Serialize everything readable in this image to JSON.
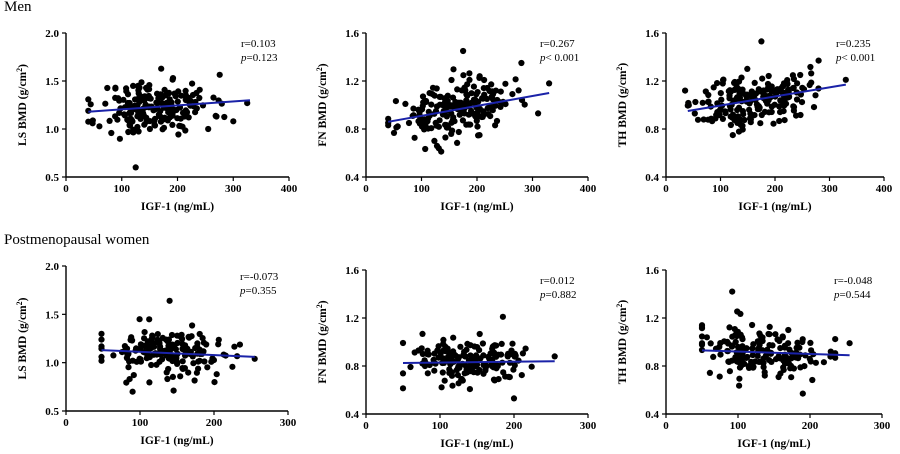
{
  "sections": [
    {
      "title": "Men",
      "panels": [
        {
          "ylabel_prefix": "LS BMD (g/cm",
          "ylabel_sup": "2",
          "ylabel_suffix": ")",
          "xlabel": "IGF-1 (ng/mL)",
          "xlim": [
            0,
            400
          ],
          "xticks": [
            0,
            100,
            200,
            300,
            400
          ],
          "ylim": [
            0.5,
            2.0
          ],
          "yticks": [
            "0.5",
            "1.0",
            "1.5",
            "2.0"
          ],
          "r_text": "r=0.103",
          "p_prefix": "p",
          "p_suffix": "=0.123",
          "fit": {
            "x1": 40,
            "y1": 1.18,
            "x2": 330,
            "y2": 1.3
          },
          "seed": 11,
          "n": 200,
          "xmean": 160,
          "xsd": 50,
          "ymean": 1.24,
          "ysd": 0.17,
          "outliers": [
            [
              125,
              0.6
            ],
            [
              300,
              1.08
            ],
            [
              325,
              1.27
            ],
            [
              255,
              1.0
            ]
          ]
        },
        {
          "ylabel_prefix": "FN BMD (g/cm",
          "ylabel_sup": "2",
          "ylabel_suffix": ")",
          "xlabel": "IGF-1 (ng/mL)",
          "xlim": [
            0,
            400
          ],
          "xticks": [
            0,
            100,
            200,
            300,
            400
          ],
          "ylim": [
            0.4,
            1.6
          ],
          "yticks": [
            "0.4",
            "0.8",
            "1.2",
            "1.6"
          ],
          "r_text": "r=0.267",
          "p_prefix": "p",
          "p_suffix": "< 0.001",
          "fit": {
            "x1": 40,
            "y1": 0.86,
            "x2": 330,
            "y2": 1.1
          },
          "seed": 23,
          "n": 200,
          "xmean": 160,
          "xsd": 50,
          "ymean": 0.96,
          "ysd": 0.13,
          "outliers": [
            [
              175,
              1.45
            ],
            [
              280,
              1.35
            ],
            [
              330,
              1.18
            ],
            [
              310,
              0.93
            ]
          ]
        },
        {
          "ylabel_prefix": "TH BMD (g/cm",
          "ylabel_sup": "2",
          "ylabel_suffix": ")",
          "xlabel": "IGF-1 (ng/mL)",
          "xlim": [
            0,
            400
          ],
          "xticks": [
            0,
            100,
            200,
            300,
            400
          ],
          "ylim": [
            0.4,
            1.6
          ],
          "yticks": [
            "0.4",
            "0.8",
            "1.2",
            "1.6"
          ],
          "r_text": "r=0.235",
          "p_prefix": "p",
          "p_suffix": "< 0.001",
          "fit": {
            "x1": 40,
            "y1": 0.95,
            "x2": 330,
            "y2": 1.17
          },
          "seed": 37,
          "n": 200,
          "xmean": 160,
          "xsd": 50,
          "ymean": 1.03,
          "ysd": 0.13,
          "outliers": [
            [
              175,
              1.53
            ],
            [
              280,
              1.37
            ],
            [
              330,
              1.21
            ],
            [
              35,
              1.12
            ]
          ]
        }
      ]
    },
    {
      "title": "Postmenopausal women",
      "panels": [
        {
          "ylabel_prefix": "LS BMD (g/cm",
          "ylabel_sup": "2",
          "ylabel_suffix": ")",
          "xlabel": "IGF-1 (ng/mL)",
          "xlim": [
            0,
            300
          ],
          "xticks": [
            0,
            100,
            200,
            300
          ],
          "ylim": [
            0.5,
            2.0
          ],
          "yticks": [
            "0.5",
            "1.0",
            "1.5",
            "2.0"
          ],
          "r_text": "r=-0.073",
          "p_prefix": "p",
          "p_suffix": "=0.355",
          "fit": {
            "x1": 48,
            "y1": 1.13,
            "x2": 255,
            "y2": 1.06
          },
          "seed": 53,
          "n": 170,
          "xmean": 140,
          "xsd": 45,
          "ymean": 1.1,
          "ysd": 0.16,
          "outliers": [
            [
              140,
              1.64
            ],
            [
              255,
              1.04
            ],
            [
              90,
              0.7
            ]
          ]
        },
        {
          "ylabel_prefix": "FN BMD (g/cm",
          "ylabel_sup": "2",
          "ylabel_suffix": ")",
          "xlabel": "IGF-1 (ng/mL)",
          "xlim": [
            0,
            300
          ],
          "xticks": [
            0,
            100,
            200,
            300
          ],
          "ylim": [
            0.4,
            1.6
          ],
          "yticks": [
            "0.4",
            "0.8",
            "1.2",
            "1.6"
          ],
          "r_text": "r=0.012",
          "p_prefix": "p",
          "p_suffix": "=0.882",
          "fit": {
            "x1": 50,
            "y1": 0.825,
            "x2": 255,
            "y2": 0.84
          },
          "seed": 71,
          "n": 170,
          "xmean": 140,
          "xsd": 45,
          "ymean": 0.84,
          "ysd": 0.12,
          "outliers": [
            [
              185,
              1.21
            ],
            [
              255,
              0.88
            ],
            [
              200,
              0.53
            ]
          ]
        },
        {
          "ylabel_prefix": "TH BMD (g/cm",
          "ylabel_sup": "2",
          "ylabel_suffix": ")",
          "xlabel": "IGF-1 (ng/mL)",
          "xlim": [
            0,
            300
          ],
          "xticks": [
            0,
            100,
            200,
            300
          ],
          "ylim": [
            0.4,
            1.6
          ],
          "yticks": [
            "0.4",
            "0.8",
            "1.2",
            "1.6"
          ],
          "r_text": "r=-0.048",
          "p_prefix": "p",
          "p_suffix": "=0.544",
          "fit": {
            "x1": 50,
            "y1": 0.93,
            "x2": 255,
            "y2": 0.89
          },
          "seed": 89,
          "n": 170,
          "xmean": 140,
          "xsd": 45,
          "ymean": 0.92,
          "ysd": 0.13,
          "outliers": [
            [
              92,
              1.42
            ],
            [
              255,
              0.99
            ],
            [
              190,
              0.57
            ]
          ]
        }
      ]
    }
  ],
  "chart_data": [
    {
      "type": "scatter",
      "group": "Men",
      "ylabel": "LS BMD (g/cm2)",
      "xlabel": "IGF-1 (ng/mL)",
      "xlim": [
        0,
        400
      ],
      "ylim": [
        0.5,
        2.0
      ],
      "r": 0.103,
      "p": 0.123,
      "fit_line": {
        "x": [
          40,
          330
        ],
        "y": [
          1.18,
          1.3
        ]
      }
    },
    {
      "type": "scatter",
      "group": "Men",
      "ylabel": "FN BMD (g/cm2)",
      "xlabel": "IGF-1 (ng/mL)",
      "xlim": [
        0,
        400
      ],
      "ylim": [
        0.4,
        1.6
      ],
      "r": 0.267,
      "p": "< 0.001",
      "fit_line": {
        "x": [
          40,
          330
        ],
        "y": [
          0.86,
          1.1
        ]
      }
    },
    {
      "type": "scatter",
      "group": "Men",
      "ylabel": "TH BMD (g/cm2)",
      "xlabel": "IGF-1 (ng/mL)",
      "xlim": [
        0,
        400
      ],
      "ylim": [
        0.4,
        1.6
      ],
      "r": 0.235,
      "p": "< 0.001",
      "fit_line": {
        "x": [
          40,
          330
        ],
        "y": [
          0.95,
          1.17
        ]
      }
    },
    {
      "type": "scatter",
      "group": "Postmenopausal women",
      "ylabel": "LS BMD (g/cm2)",
      "xlabel": "IGF-1 (ng/mL)",
      "xlim": [
        0,
        300
      ],
      "ylim": [
        0.5,
        2.0
      ],
      "r": -0.073,
      "p": 0.355,
      "fit_line": {
        "x": [
          48,
          255
        ],
        "y": [
          1.13,
          1.06
        ]
      }
    },
    {
      "type": "scatter",
      "group": "Postmenopausal women",
      "ylabel": "FN BMD (g/cm2)",
      "xlabel": "IGF-1 (ng/mL)",
      "xlim": [
        0,
        300
      ],
      "ylim": [
        0.4,
        1.6
      ],
      "r": 0.012,
      "p": 0.882,
      "fit_line": {
        "x": [
          50,
          255
        ],
        "y": [
          0.825,
          0.84
        ]
      }
    },
    {
      "type": "scatter",
      "group": "Postmenopausal women",
      "ylabel": "TH BMD (g/cm2)",
      "xlabel": "IGF-1 (ng/mL)",
      "xlim": [
        0,
        300
      ],
      "ylim": [
        0.4,
        1.6
      ],
      "r": -0.048,
      "p": 0.544,
      "fit_line": {
        "x": [
          50,
          255
        ],
        "y": [
          0.93,
          0.89
        ]
      }
    }
  ]
}
